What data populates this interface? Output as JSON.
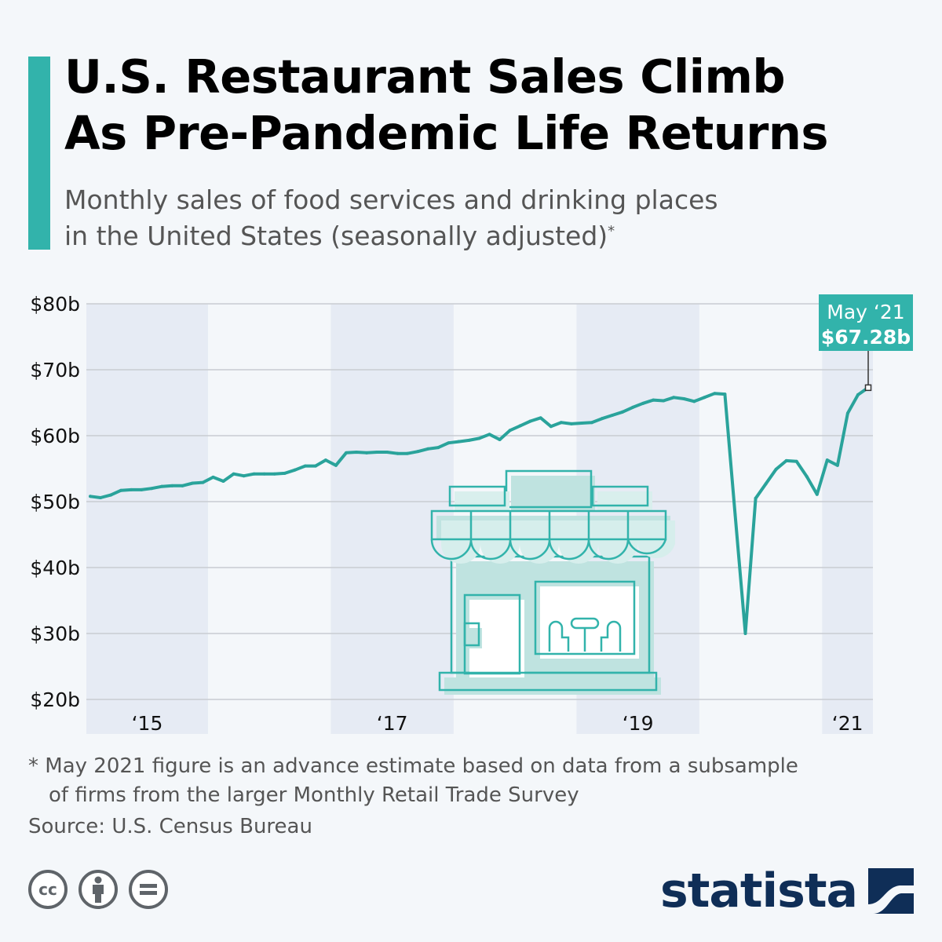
{
  "header": {
    "title_line1": "U.S. Restaurant Sales Climb",
    "title_line2": "As Pre-Pandemic Life Returns",
    "subtitle_line1": "Monthly sales of food services and drinking places",
    "subtitle_line2": "in the United States (seasonally adjusted)",
    "subtitle_mark": "*"
  },
  "colors": {
    "accent": "#32b3ab",
    "line": "#2aa39b",
    "band": "#e6ebf4",
    "grid": "#c8ccd2",
    "callout_bg": "#32b3ab",
    "brand": "#0f2e57"
  },
  "chart_data": {
    "type": "line",
    "x_start": "2015-01",
    "x_end": "2021-05",
    "ylim": [
      20,
      80
    ],
    "yticks": [
      20,
      30,
      40,
      50,
      60,
      70,
      80
    ],
    "ytick_labels": [
      "$20b",
      "$30b",
      "$40b",
      "$50b",
      "$60b",
      "$70b",
      "$80b"
    ],
    "xtick_labels": [
      "‘15",
      "‘17",
      "‘19",
      "‘21"
    ],
    "grid": true,
    "shaded_bands_years": [
      2015,
      2017,
      2019,
      2021
    ],
    "series": [
      {
        "values": [
          50.8,
          50.6,
          51.0,
          51.7,
          51.8,
          51.8,
          52.0,
          52.3,
          52.4,
          52.4,
          52.8,
          52.9,
          53.7,
          53.1,
          54.2,
          53.9,
          54.2,
          54.2,
          54.2,
          54.3,
          54.8,
          55.4,
          55.4,
          56.3,
          55.5,
          57.4,
          57.5,
          57.4,
          57.5,
          57.5,
          57.3,
          57.3,
          57.6,
          58.0,
          58.2,
          58.9,
          59.1,
          59.3,
          59.6,
          60.2,
          59.4,
          60.8,
          61.5,
          62.2,
          62.7,
          61.4,
          62.0,
          61.8,
          61.9,
          62.0,
          62.6,
          63.1,
          63.6,
          64.3,
          64.9,
          65.4,
          65.3,
          65.8,
          65.6,
          65.2,
          65.8,
          66.4,
          66.3,
          48.0,
          30.0,
          50.5,
          52.7,
          54.9,
          56.2,
          56.1,
          53.8,
          51.1,
          56.3,
          55.5,
          63.4,
          66.2,
          67.28
        ]
      }
    ],
    "callout": {
      "label": "May ‘21",
      "value_label": "$67.28b",
      "x": "2021-05",
      "y": 67.28
    }
  },
  "footer": {
    "footnote_line1": "* May 2021 figure is an advance estimate based on data from a subsample",
    "footnote_line2": "of firms from the larger Monthly Retail Trade Survey",
    "source": "Source: U.S. Census Bureau",
    "license_icons": [
      "cc-icon",
      "attribution-icon",
      "no-derivatives-icon"
    ],
    "cc_text": "cc",
    "brand": "statista"
  }
}
